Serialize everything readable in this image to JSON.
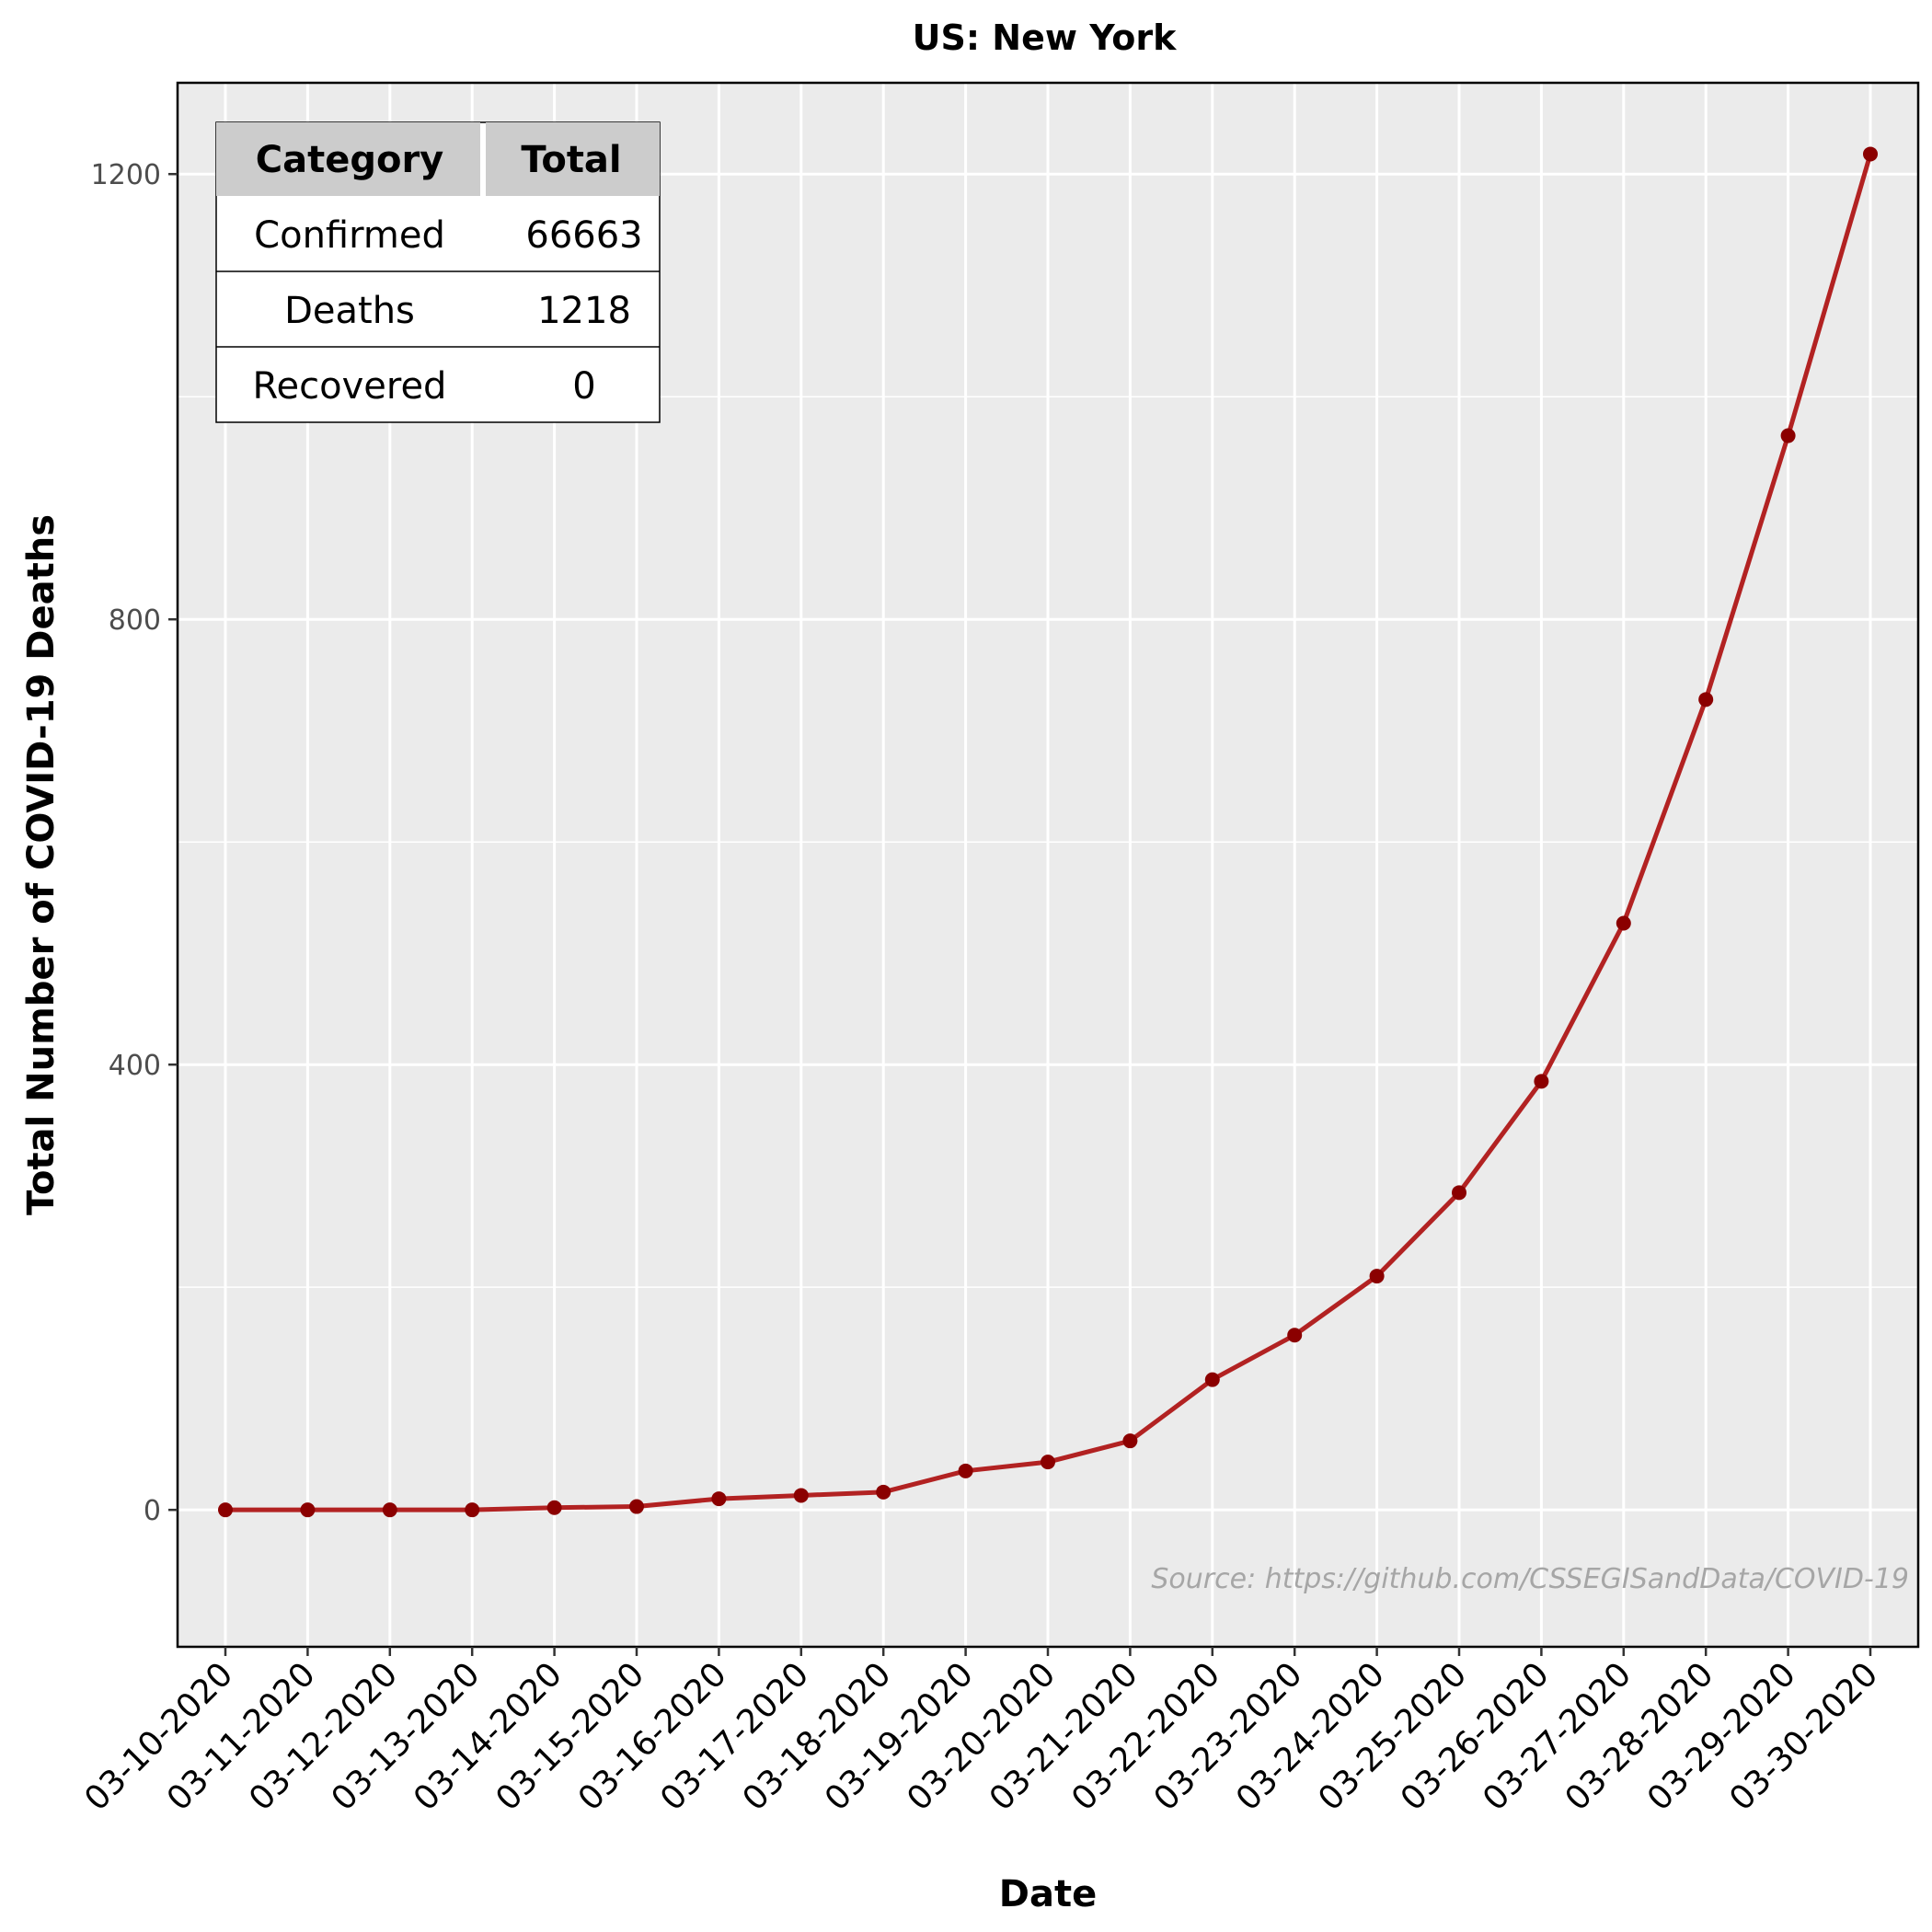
{
  "chart_data": {
    "type": "line",
    "title": "US: New York",
    "xlabel": "Date",
    "ylabel": "Total Number of COVID-19 Deaths",
    "source_note": "Source: https://github.com/CSSEGISandData/COVID-19",
    "categories": [
      "03-10-2020",
      "03-11-2020",
      "03-12-2020",
      "03-13-2020",
      "03-14-2020",
      "03-15-2020",
      "03-16-2020",
      "03-17-2020",
      "03-18-2020",
      "03-19-2020",
      "03-20-2020",
      "03-21-2020",
      "03-22-2020",
      "03-23-2020",
      "03-24-2020",
      "03-25-2020",
      "03-26-2020",
      "03-27-2020",
      "03-28-2020",
      "03-29-2020",
      "03-30-2020"
    ],
    "series": [
      {
        "values": [
          0,
          0,
          0,
          0,
          2,
          3,
          10,
          13,
          16,
          35,
          43,
          62,
          117,
          157,
          210,
          285,
          385,
          527,
          728,
          965,
          1218
        ],
        "color": "#b22222",
        "point_color": "#8b0000"
      }
    ],
    "ylim": [
      -123,
      1282
    ],
    "yticks": [
      0,
      400,
      800,
      1200
    ],
    "yticks_minor": [
      200,
      600,
      1000
    ],
    "grid": true,
    "panel_background": "#ebebeb",
    "summary_table": {
      "headers": [
        "Category",
        "Total"
      ],
      "rows": [
        [
          "Confirmed",
          "66663"
        ],
        [
          "Deaths",
          "1218"
        ],
        [
          "Recovered",
          "0"
        ]
      ],
      "placement": "top-left"
    }
  }
}
